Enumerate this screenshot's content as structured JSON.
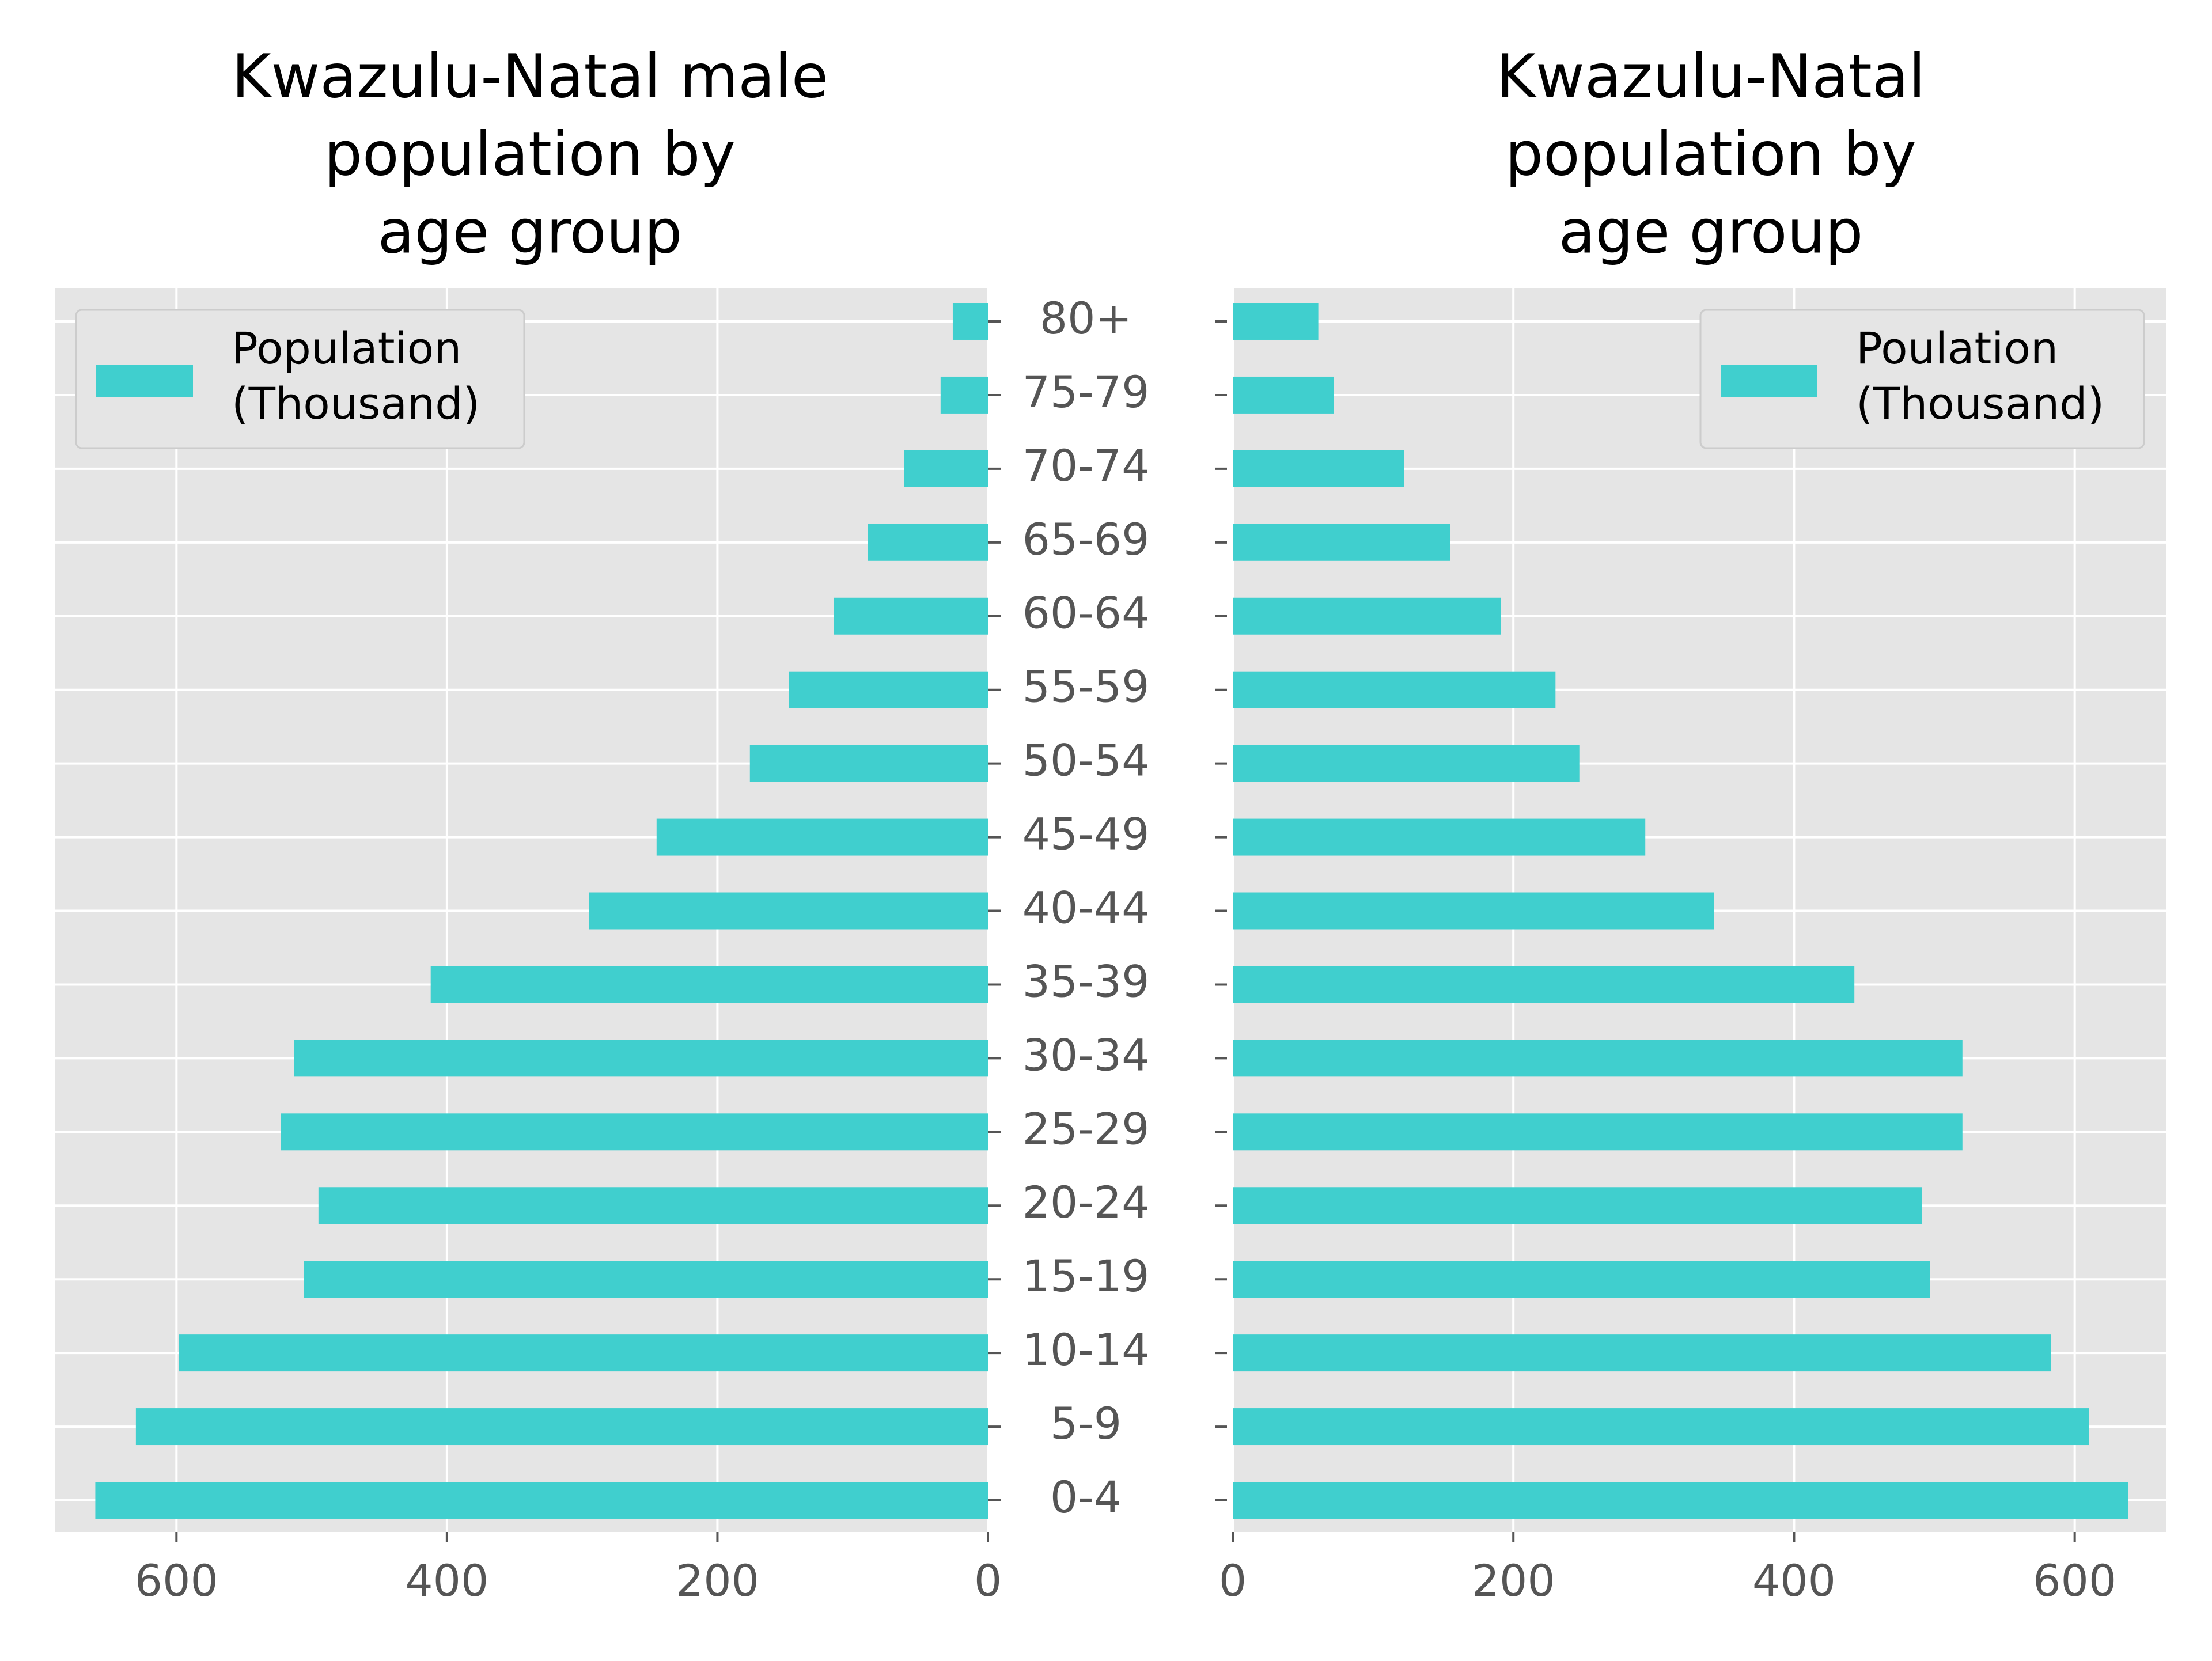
{
  "chart_data": [
    {
      "type": "bar",
      "orientation": "horizontal",
      "direction": "reversed",
      "title": "Kwazulu-Natal male\npopulation by\nage group",
      "categories": [
        "0-4",
        "5-9",
        "10-14",
        "15-19",
        "20-24",
        "25-29",
        "30-34",
        "35-39",
        "40-44",
        "45-49",
        "50-54",
        "55-59",
        "60-64",
        "65-69",
        "70-74",
        "75-79",
        "80+"
      ],
      "series": [
        {
          "name": "Population\n(Thousand)",
          "values": [
            660,
            630,
            598,
            506,
            495,
            523,
            513,
            412,
            295,
            245,
            176,
            147,
            114,
            89,
            62,
            35,
            26
          ]
        }
      ],
      "xlim": [
        690,
        0
      ],
      "xticks": [
        600,
        400,
        200,
        0
      ],
      "xlabel": "",
      "ylabel": "",
      "grid": true,
      "legend_position": "top-left",
      "bar_color": "#40cfce",
      "background_color": "#e5e5e5"
    },
    {
      "type": "bar",
      "orientation": "horizontal",
      "direction": "normal",
      "title": "Kwazulu-Natal\npopulation by\nage group",
      "categories": [
        "0-4",
        "5-9",
        "10-14",
        "15-19",
        "20-24",
        "25-29",
        "30-34",
        "35-39",
        "40-44",
        "45-49",
        "50-54",
        "55-59",
        "60-64",
        "65-69",
        "70-74",
        "75-79",
        "80+"
      ],
      "series": [
        {
          "name": "Poulation\n(Thousand)",
          "values": [
            638,
            610,
            583,
            497,
            491,
            520,
            520,
            443,
            343,
            294,
            247,
            230,
            191,
            155,
            122,
            72,
            61
          ]
        }
      ],
      "xlim": [
        0,
        665
      ],
      "xticks": [
        0,
        200,
        400,
        600
      ],
      "xlabel": "",
      "ylabel": "",
      "grid": true,
      "legend_position": "top-right",
      "bar_color": "#40cfce",
      "background_color": "#e5e5e5"
    }
  ]
}
